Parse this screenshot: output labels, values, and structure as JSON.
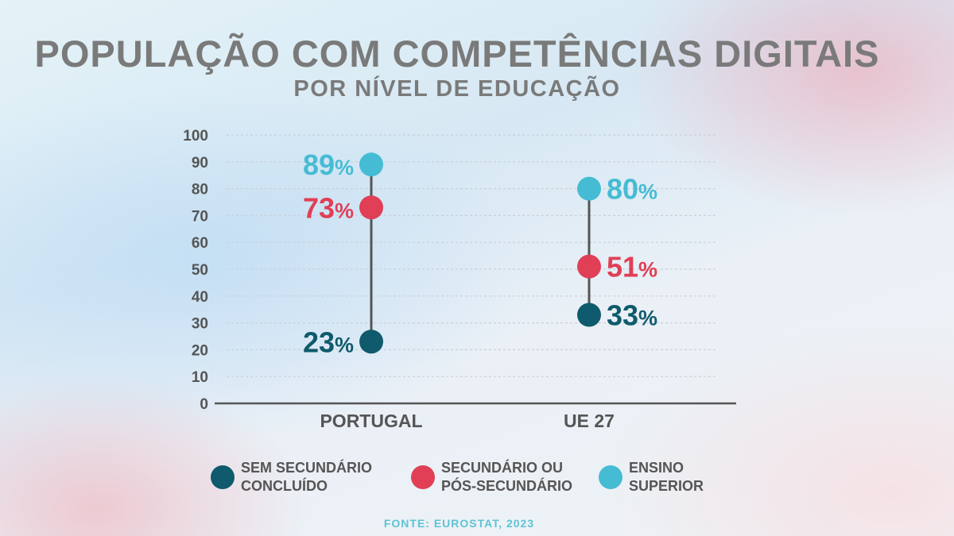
{
  "title": "POPULAÇÃO COM COMPETÊNCIAS DIGITAIS",
  "subtitle": "POR NÍVEL DE EDUCAÇÃO",
  "source": "FONTE: EUROSTAT, 2023",
  "legend": [
    {
      "line1": "SEM SECUNDÁRIO",
      "line2": "CONCLUÍDO",
      "color": "#0f5a6c"
    },
    {
      "line1": "SECUNDÁRIO OU",
      "line2": "PÓS-SECUNDÁRIO",
      "color": "#e03f56"
    },
    {
      "line1": "ENSINO",
      "line2": "SUPERIOR",
      "color": "#45bcd4"
    }
  ],
  "chart_data": {
    "type": "dumbbell",
    "categories": [
      "PORTUGAL",
      "UE 27"
    ],
    "ylim": [
      0,
      100
    ],
    "yticks": [
      0,
      10,
      20,
      30,
      40,
      50,
      60,
      70,
      80,
      90,
      100
    ],
    "grid": true,
    "value_suffix": "%",
    "series": [
      {
        "name": "SEM SECUNDÁRIO CONCLUÍDO",
        "color": "#0f5a6c",
        "values": [
          23,
          33
        ]
      },
      {
        "name": "SECUNDÁRIO OU PÓS-SECUNDÁRIO",
        "color": "#e03f56",
        "values": [
          73,
          51
        ]
      },
      {
        "name": "ENSINO SUPERIOR",
        "color": "#45bcd4",
        "values": [
          89,
          80
        ]
      }
    ],
    "label_side": [
      "left",
      "right"
    ]
  }
}
